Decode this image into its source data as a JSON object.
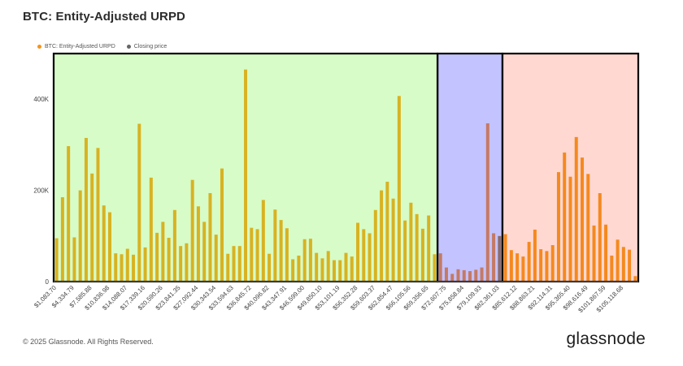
{
  "title": "BTC: Entity-Adjusted URPD",
  "legend": {
    "urpd_label": "BTC: Entity-Adjusted URPD",
    "price_label": "Closing price",
    "urpd_color": "#f7931a",
    "price_color": "#666666"
  },
  "footer": "© 2025 Glassnode. All Rights Reserved.",
  "brand": "glassnode",
  "chart_data": {
    "type": "bar",
    "ylim": [
      0,
      500000
    ],
    "yticks": [
      0,
      200000,
      400000
    ],
    "ytick_labels": [
      "0",
      "200K",
      "400K"
    ],
    "xtick_labels": [
      "$1,083.70",
      "$4,334.79",
      "$7,585.88",
      "$10,836.98",
      "$14,088.07",
      "$17,339.16",
      "$20,590.26",
      "$23,841.35",
      "$27,092.44",
      "$30,343.54",
      "$33,594.63",
      "$36,845.72",
      "$40,096.82",
      "$43,347.91",
      "$46,599.00",
      "$49,850.10",
      "$53,101.19",
      "$56,352.28",
      "$59,603.37",
      "$62,854.47",
      "$66,105.56",
      "$69,356.65",
      "$72,607.75",
      "$75,858.84",
      "$79,109.93",
      "$82,361.03",
      "$85,612.12",
      "$88,863.21",
      "$92,114.31",
      "$95,365.40",
      "$98,616.49",
      "$101,867.59",
      "$105,118.68"
    ],
    "values": [
      95000,
      185000,
      297000,
      97000,
      200000,
      315000,
      237000,
      293000,
      167000,
      152000,
      62000,
      60000,
      72000,
      59000,
      346000,
      75000,
      228000,
      107000,
      131000,
      96000,
      157000,
      78000,
      84000,
      223000,
      165000,
      131000,
      194000,
      103000,
      248000,
      61000,
      78000,
      78000,
      465000,
      118000,
      115000,
      179000,
      61000,
      158000,
      135000,
      117000,
      49000,
      57000,
      93000,
      94000,
      63000,
      51000,
      67000,
      47000,
      47000,
      63000,
      55000,
      129000,
      115000,
      106000,
      157000,
      200000,
      219000,
      182000,
      407000,
      134000,
      173000,
      148000,
      116000,
      145000,
      60000,
      62000,
      31000,
      17000,
      27000,
      25000,
      23000,
      26000,
      31000,
      347000,
      106000,
      100000,
      104000,
      69000,
      62000,
      55000,
      87000,
      114000,
      71000,
      67000,
      80000,
      240000,
      283000,
      230000,
      317000,
      272000,
      236000,
      123000,
      194000,
      125000,
      57000,
      92000,
      76000,
      70000,
      12000
    ],
    "regions": [
      {
        "from_index": 0,
        "to_index": 64,
        "color": "#d7fcc7",
        "bar_color": "#d8b222"
      },
      {
        "from_index": 65,
        "to_index": 75,
        "color": "#c3c3ff",
        "bar_color": "#c57a64"
      },
      {
        "from_index": 76,
        "to_index": 98,
        "color": "#ffd8d1",
        "bar_color": "#f5891e"
      }
    ],
    "closing_price_bar_index": 75,
    "closing_price_bar_color": "#8a6d6d",
    "grid": false
  }
}
